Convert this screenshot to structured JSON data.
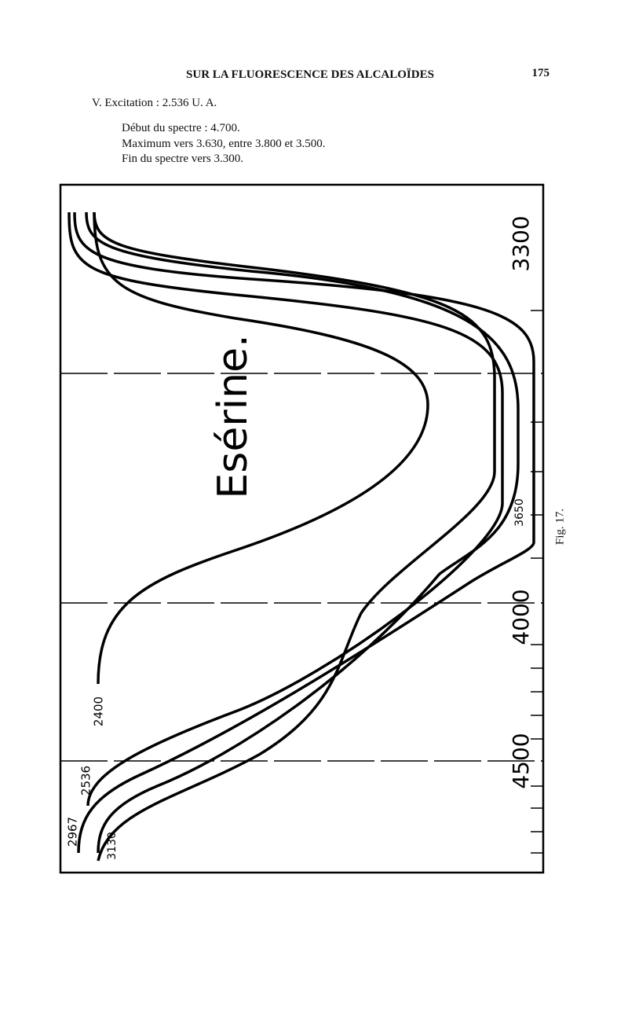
{
  "header": {
    "title": "SUR LA FLUORESCENCE DES ALCALOÏDES",
    "page_number": "175"
  },
  "section": {
    "heading": "V. Excitation : 2.536 U. A.",
    "lines": [
      "Début du spectre : 4.700.",
      "Maximum vers 3.630, entre 3.800 et 3.500.",
      "Fin du spectre vers 3.300."
    ]
  },
  "figure": {
    "title": "Esérine.",
    "caption": "Fig. 17.",
    "axis_labels": [
      "3300",
      "4000",
      "4500"
    ],
    "curve_labels": [
      "2400",
      "2536",
      "2967",
      "3130",
      "3650"
    ]
  }
}
